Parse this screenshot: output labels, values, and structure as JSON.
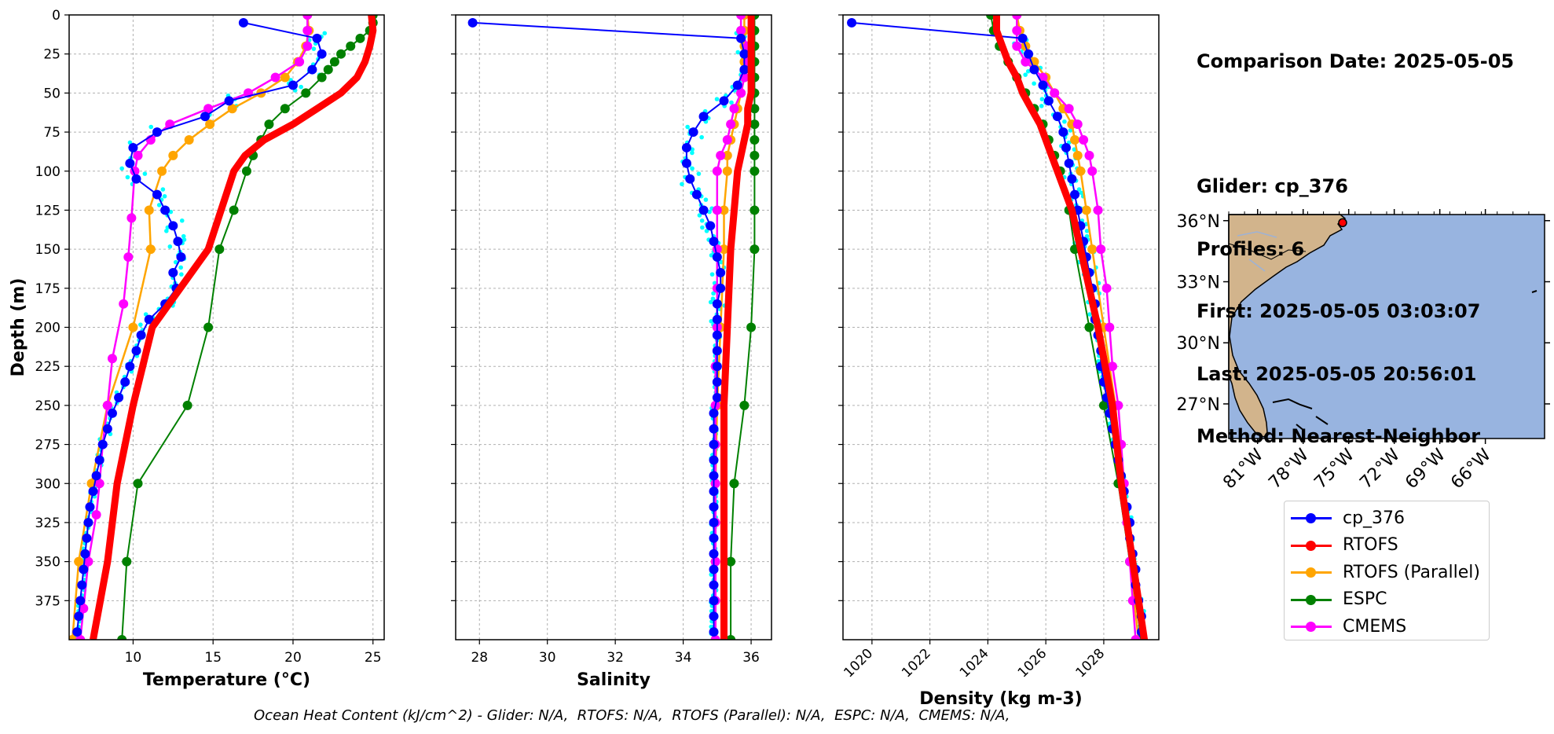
{
  "info": {
    "comparison_date": "Comparison Date: 2025-05-05",
    "glider": "Glider: cp_376",
    "profiles": "Profiles: 6",
    "first": "First: 2025-05-05 03:03:07",
    "last": "Last: 2025-05-05 20:56:01",
    "method": "Method: Nearest-Neighbor"
  },
  "footer": "Ocean Heat Content (kJ/cm^2) - Glider: N/A,  RTOFS: N/A,  RTOFS (Parallel): N/A,  ESPC: N/A,  CMEMS: N/A,",
  "colors": {
    "cp_376": "#0000ff",
    "RTOFS": "#ff0000",
    "RTOFS (Parallel)": "#ffa500",
    "ESPC": "#008000",
    "CMEMS": "#ff00ff",
    "raw": "#00ffff",
    "ocean": "#98b4e0",
    "land": "#d2b48c"
  },
  "legend": [
    "cp_376",
    "RTOFS",
    "RTOFS (Parallel)",
    "ESPC",
    "CMEMS"
  ],
  "map": {
    "lat_labels": [
      "36°N",
      "33°N",
      "30°N",
      "27°N"
    ],
    "lon_labels": [
      "81°W",
      "78°W",
      "75°W",
      "72°W",
      "69°W",
      "66°W"
    ],
    "glider_location": {
      "lon": -75.4,
      "lat": 35.9
    }
  },
  "chart_data": [
    {
      "type": "line",
      "title": "",
      "xlabel": "Temperature (°C)",
      "ylabel": "Depth (m)",
      "xlim": [
        6.0,
        25.7
      ],
      "ylim": [
        400,
        0
      ],
      "xticks": [
        "10",
        "15",
        "20",
        "25"
      ],
      "yticks": [
        "0",
        "25",
        "50",
        "75",
        "100",
        "125",
        "150",
        "175",
        "200",
        "225",
        "250",
        "275",
        "300",
        "325",
        "350",
        "375"
      ],
      "grid": true,
      "series": [
        {
          "name": "cp_376",
          "depth": [
            5,
            15,
            25,
            35,
            45,
            55,
            65,
            75,
            85,
            95,
            105,
            115,
            125,
            135,
            145,
            155,
            165,
            175,
            185,
            195,
            205,
            215,
            225,
            235,
            245,
            255,
            265,
            275,
            285,
            295,
            305,
            315,
            325,
            335,
            345,
            355,
            365,
            375,
            385,
            395
          ],
          "values": [
            16.9,
            21.5,
            21.8,
            21.2,
            20.0,
            16.0,
            14.5,
            11.5,
            10.0,
            9.8,
            10.2,
            11.5,
            12.0,
            12.5,
            12.8,
            13.0,
            12.5,
            12.7,
            12.0,
            11.0,
            10.5,
            10.2,
            9.8,
            9.5,
            9.1,
            8.7,
            8.4,
            8.1,
            7.9,
            7.7,
            7.5,
            7.3,
            7.2,
            7.1,
            7.0,
            6.9,
            6.8,
            6.7,
            6.6,
            6.5
          ]
        },
        {
          "name": "RTOFS",
          "depth": [
            0,
            10,
            20,
            30,
            40,
            50,
            60,
            70,
            80,
            90,
            100,
            125,
            150,
            200,
            250,
            300,
            350,
            400
          ],
          "values": [
            24.9,
            25.0,
            24.8,
            24.5,
            24.0,
            23.0,
            21.5,
            20.0,
            18.2,
            17.0,
            16.3,
            15.5,
            14.7,
            11.2,
            10.0,
            9.0,
            8.4,
            7.5
          ]
        },
        {
          "name": "RTOFS (Parallel)",
          "depth": [
            0,
            10,
            20,
            30,
            40,
            50,
            60,
            70,
            80,
            90,
            100,
            125,
            150,
            200,
            250,
            300,
            350,
            400
          ],
          "values": [
            20.9,
            21.0,
            20.8,
            20.3,
            19.5,
            18.0,
            16.2,
            14.8,
            13.5,
            12.5,
            11.8,
            11.0,
            11.1,
            10.0,
            8.4,
            7.4,
            6.6,
            6.2
          ]
        },
        {
          "name": "ESPC",
          "depth": [
            0,
            5,
            10,
            15,
            20,
            25,
            30,
            35,
            40,
            50,
            60,
            70,
            80,
            90,
            100,
            125,
            150,
            200,
            250,
            300,
            350,
            400
          ],
          "values": [
            25.0,
            25.0,
            24.8,
            24.2,
            23.6,
            23.0,
            22.6,
            22.2,
            21.8,
            20.8,
            19.5,
            18.5,
            18.0,
            17.5,
            17.1,
            16.3,
            15.4,
            14.7,
            13.4,
            10.3,
            9.6,
            9.3
          ]
        },
        {
          "name": "CMEMS",
          "depth": [
            0,
            10,
            20,
            30,
            40,
            50,
            60,
            70,
            80,
            90,
            100,
            130,
            155,
            185,
            220,
            250,
            275,
            300,
            320,
            350,
            380,
            400
          ],
          "values": [
            20.9,
            20.9,
            20.9,
            20.4,
            18.9,
            17.2,
            14.7,
            12.3,
            11.1,
            10.3,
            10.1,
            9.9,
            9.7,
            9.4,
            8.7,
            8.4,
            8.1,
            7.9,
            7.7,
            7.2,
            6.9,
            6.7
          ]
        }
      ]
    },
    {
      "type": "line",
      "title": "",
      "xlabel": "Salinity",
      "ylabel": "",
      "xlim": [
        27.3,
        36.6
      ],
      "ylim": [
        400,
        0
      ],
      "xticks": [
        "28",
        "30",
        "32",
        "34",
        "36"
      ],
      "grid": true,
      "series": [
        {
          "name": "cp_376",
          "depth": [
            5,
            15,
            25,
            35,
            45,
            55,
            65,
            75,
            85,
            95,
            105,
            115,
            125,
            135,
            145,
            155,
            165,
            175,
            185,
            195,
            205,
            215,
            225,
            235,
            245,
            255,
            265,
            275,
            285,
            295,
            305,
            315,
            325,
            335,
            345,
            355,
            365,
            375,
            385,
            395
          ],
          "values": [
            27.8,
            35.7,
            35.8,
            35.8,
            35.6,
            35.2,
            34.6,
            34.3,
            34.1,
            34.1,
            34.2,
            34.4,
            34.6,
            34.8,
            34.9,
            35.0,
            35.1,
            35.1,
            35.0,
            35.0,
            35.0,
            35.0,
            35.0,
            35.0,
            35.0,
            34.9,
            34.9,
            34.9,
            34.9,
            34.9,
            34.9,
            34.9,
            34.9,
            34.9,
            34.9,
            34.9,
            34.9,
            34.9,
            34.9,
            34.9
          ]
        },
        {
          "name": "RTOFS",
          "depth": [
            0,
            10,
            20,
            30,
            40,
            50,
            60,
            70,
            80,
            90,
            100,
            125,
            150,
            200,
            250,
            300,
            350,
            400
          ],
          "values": [
            36.0,
            36.0,
            36.0,
            36.0,
            36.0,
            36.0,
            35.9,
            35.9,
            35.8,
            35.7,
            35.6,
            35.5,
            35.4,
            35.3,
            35.2,
            35.2,
            35.2,
            35.2
          ]
        },
        {
          "name": "RTOFS (Parallel)",
          "depth": [
            0,
            10,
            20,
            30,
            40,
            50,
            60,
            70,
            80,
            90,
            100,
            125,
            150,
            200,
            250,
            300,
            350,
            400
          ],
          "values": [
            35.8,
            35.8,
            35.8,
            35.8,
            35.8,
            35.7,
            35.6,
            35.5,
            35.4,
            35.3,
            35.3,
            35.2,
            35.2,
            35.1,
            35.0,
            34.95,
            34.95,
            34.95
          ]
        },
        {
          "name": "ESPC",
          "depth": [
            0,
            10,
            20,
            30,
            40,
            50,
            60,
            70,
            80,
            90,
            100,
            125,
            150,
            200,
            250,
            300,
            350,
            400
          ],
          "values": [
            36.1,
            36.1,
            36.1,
            36.1,
            36.1,
            36.1,
            36.1,
            36.1,
            36.1,
            36.1,
            36.1,
            36.1,
            36.1,
            36.0,
            35.8,
            35.5,
            35.4,
            35.4
          ]
        },
        {
          "name": "CMEMS",
          "depth": [
            0,
            10,
            20,
            30,
            40,
            50,
            60,
            70,
            80,
            90,
            100,
            125,
            150,
            175,
            200,
            225,
            250,
            275,
            300,
            325,
            350,
            375,
            400
          ],
          "values": [
            35.7,
            35.7,
            35.9,
            35.9,
            35.8,
            35.7,
            35.5,
            35.4,
            35.3,
            35.1,
            35.0,
            35.0,
            35.0,
            35.0,
            35.0,
            34.95,
            34.95,
            34.95,
            34.95,
            34.95,
            34.95,
            34.95,
            34.95
          ]
        }
      ]
    },
    {
      "type": "line",
      "title": "",
      "xlabel": "Density (kg m-3)",
      "ylabel": "",
      "xlim": [
        1019.0,
        1029.9
      ],
      "ylim": [
        400,
        0
      ],
      "xticks": [
        "1020",
        "1022",
        "1024",
        "1026",
        "1028"
      ],
      "grid": true,
      "series": [
        {
          "name": "cp_376",
          "depth": [
            5,
            15,
            25,
            35,
            45,
            55,
            65,
            75,
            85,
            95,
            105,
            115,
            125,
            135,
            145,
            155,
            165,
            175,
            185,
            195,
            205,
            215,
            225,
            235,
            245,
            255,
            265,
            275,
            285,
            295,
            305,
            315,
            325,
            335,
            345,
            355,
            365,
            375,
            385,
            395
          ],
          "values": [
            1019.3,
            1025.2,
            1025.4,
            1025.6,
            1025.9,
            1026.1,
            1026.4,
            1026.6,
            1026.7,
            1026.8,
            1026.9,
            1027.0,
            1027.1,
            1027.2,
            1027.3,
            1027.4,
            1027.5,
            1027.6,
            1027.7,
            1027.7,
            1027.8,
            1027.9,
            1027.9,
            1028.0,
            1028.1,
            1028.2,
            1028.3,
            1028.4,
            1028.5,
            1028.6,
            1028.7,
            1028.8,
            1028.9,
            1028.9,
            1029.0,
            1029.1,
            1029.1,
            1029.2,
            1029.3,
            1029.3
          ]
        },
        {
          "name": "RTOFS",
          "depth": [
            0,
            10,
            20,
            30,
            40,
            50,
            60,
            70,
            80,
            90,
            100,
            125,
            150,
            200,
            250,
            300,
            350,
            400
          ],
          "values": [
            1024.3,
            1024.3,
            1024.5,
            1024.7,
            1025.0,
            1025.2,
            1025.5,
            1025.8,
            1026.0,
            1026.2,
            1026.4,
            1026.9,
            1027.2,
            1027.8,
            1028.3,
            1028.6,
            1029.0,
            1029.4
          ]
        },
        {
          "name": "RTOFS (Parallel)",
          "depth": [
            0,
            10,
            20,
            30,
            40,
            50,
            60,
            70,
            80,
            90,
            100,
            125,
            150,
            200,
            250,
            300,
            350,
            400
          ],
          "values": [
            1025.0,
            1025.1,
            1025.3,
            1025.6,
            1026.0,
            1026.3,
            1026.6,
            1026.9,
            1027.0,
            1027.1,
            1027.2,
            1027.4,
            1027.6,
            1028.0,
            1028.4,
            1028.6,
            1028.9,
            1029.2
          ]
        },
        {
          "name": "ESPC",
          "depth": [
            0,
            10,
            20,
            30,
            40,
            50,
            60,
            70,
            80,
            90,
            100,
            125,
            150,
            200,
            250,
            300,
            350,
            400
          ],
          "values": [
            1024.1,
            1024.2,
            1024.4,
            1024.7,
            1025.0,
            1025.3,
            1025.6,
            1025.9,
            1026.1,
            1026.3,
            1026.5,
            1026.8,
            1027.0,
            1027.5,
            1028.0,
            1028.5,
            1028.9,
            1029.3
          ]
        },
        {
          "name": "CMEMS",
          "depth": [
            0,
            10,
            20,
            30,
            40,
            50,
            60,
            70,
            80,
            90,
            100,
            125,
            150,
            175,
            200,
            225,
            250,
            275,
            300,
            325,
            350,
            375,
            400
          ],
          "values": [
            1025.0,
            1025.0,
            1025.0,
            1025.3,
            1025.9,
            1026.3,
            1026.8,
            1027.1,
            1027.3,
            1027.5,
            1027.6,
            1027.8,
            1027.9,
            1028.1,
            1028.2,
            1028.3,
            1028.5,
            1028.6,
            1028.7,
            1028.8,
            1028.9,
            1029.0,
            1029.1
          ]
        }
      ]
    }
  ]
}
